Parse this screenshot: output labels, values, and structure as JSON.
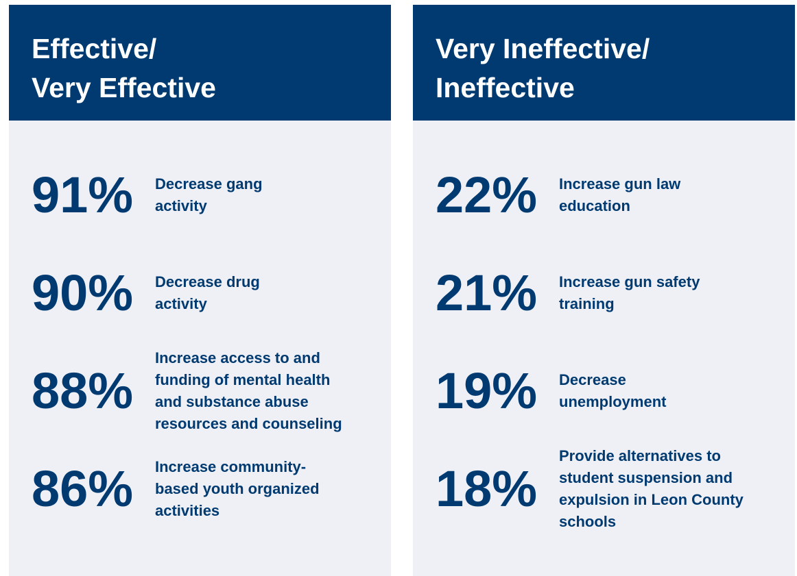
{
  "panels": [
    {
      "title": [
        "Effective/",
        "Very Effective"
      ],
      "items": [
        {
          "value": "91%",
          "lines": [
            "Decrease gang",
            "activity"
          ]
        },
        {
          "value": "90%",
          "lines": [
            "Decrease drug",
            "activity"
          ]
        },
        {
          "value": "88%",
          "lines": [
            "Increase access to and",
            "funding of mental health",
            "and substance abuse",
            "resources and counseling"
          ]
        },
        {
          "value": "86%",
          "lines": [
            "Increase community-",
            "based youth organized",
            "activities"
          ]
        }
      ]
    },
    {
      "title": [
        "Very Ineffective/",
        "Ineffective"
      ],
      "items": [
        {
          "value": "22%",
          "lines": [
            "Increase gun law",
            "education"
          ]
        },
        {
          "value": "21%",
          "lines": [
            "Increase gun safety",
            "training"
          ]
        },
        {
          "value": "19%",
          "lines": [
            "Decrease",
            "unemployment"
          ]
        },
        {
          "value": "18%",
          "lines": [
            "Provide alternatives to",
            "student suspension and",
            "expulsion in Leon County",
            "schools"
          ]
        }
      ]
    }
  ]
}
